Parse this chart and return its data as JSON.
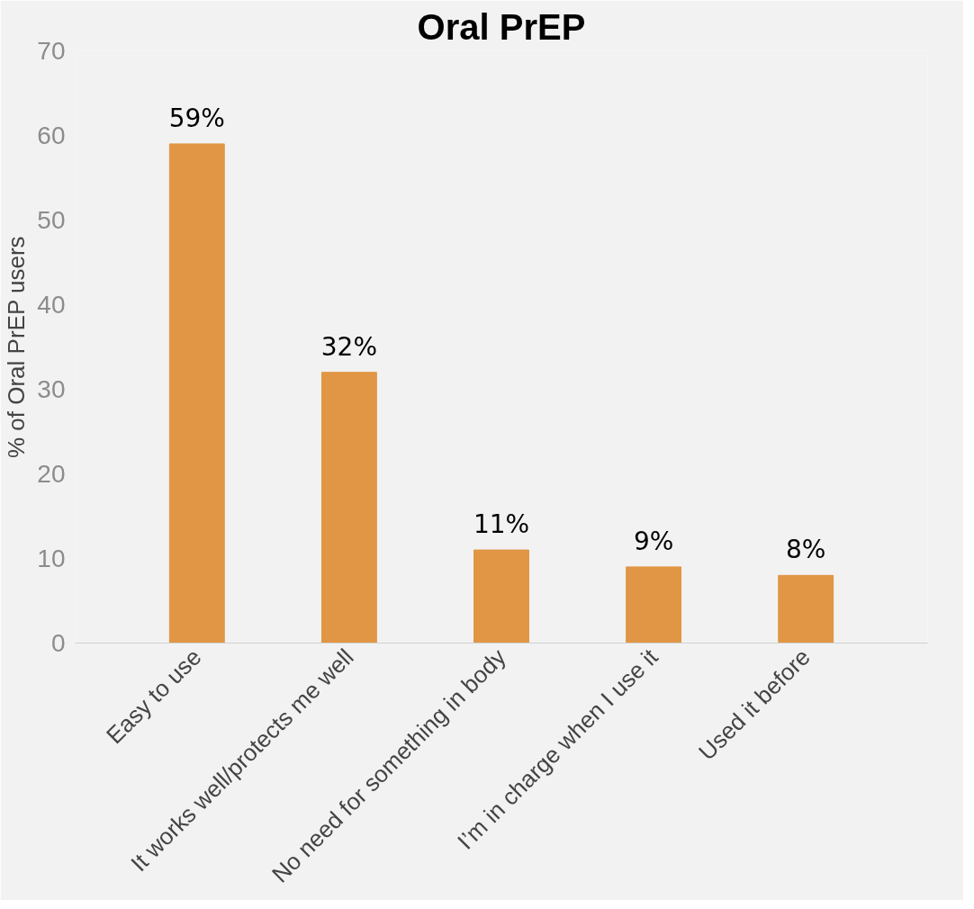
{
  "chart_data": {
    "type": "bar",
    "title": "Oral PrEP",
    "ylabel": "% of Oral PrEP users",
    "categories": [
      "Easy to use",
      "It works well/protects me well",
      "No need for something in body",
      "I’m in charge when I use it",
      "Used it before"
    ],
    "values": [
      59,
      32,
      11,
      9,
      8
    ],
    "value_labels": [
      "59%",
      "32%",
      "11%",
      "9%",
      "8%"
    ],
    "color": "#e09644",
    "ylim": [
      0,
      70
    ],
    "yticks": [
      0,
      10,
      20,
      30,
      40,
      50,
      60,
      70
    ],
    "grid": false
  }
}
